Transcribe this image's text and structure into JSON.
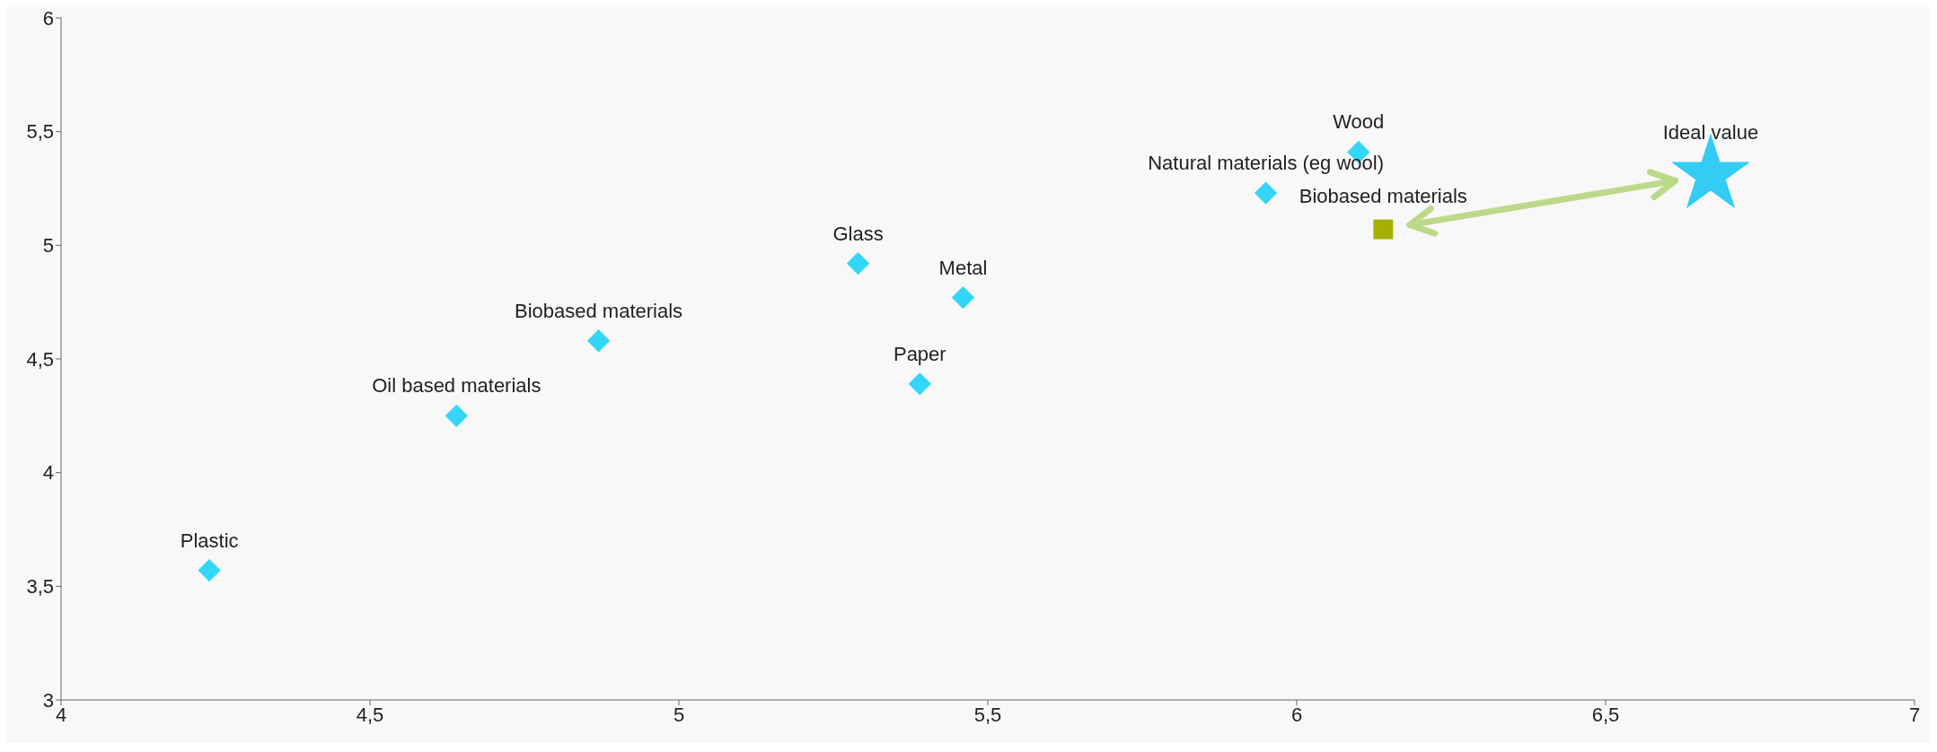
{
  "chart_data": {
    "type": "scatter",
    "xlim": [
      4,
      7
    ],
    "xticks": [
      4,
      {
        "value": 4.5,
        "label": "4,5"
      },
      5,
      {
        "value": 5.5,
        "label": "5,5"
      },
      6,
      {
        "value": 6.5,
        "label": "6,5"
      },
      7
    ],
    "ylim": [
      3,
      6
    ],
    "yticks": [
      3,
      {
        "value": 3.5,
        "label": "3,5"
      },
      4,
      {
        "value": 4.5,
        "label": "4,5"
      },
      5,
      {
        "value": 5.5,
        "label": "5,5"
      },
      6
    ],
    "grid": false,
    "legend": false,
    "series": [
      {
        "color": "#33d6f7",
        "marker": "diamond",
        "x": [
          4.24,
          4.64,
          4.87,
          5.29,
          5.39,
          5.46,
          5.95,
          6.1
        ],
        "values": [
          3.57,
          4.25,
          4.58,
          4.92,
          4.39,
          4.77,
          5.23,
          5.41
        ]
      },
      {
        "color": "#a5b000",
        "marker": "square",
        "x": [
          6.14
        ],
        "values": [
          5.07
        ]
      },
      {
        "color": "#33ccf5",
        "marker": "star",
        "x": [
          6.67
        ],
        "values": [
          5.31
        ]
      }
    ],
    "annotations": [
      {
        "text": "Plastic",
        "x": 4.24,
        "y": 3.57
      },
      {
        "text": "Oil based materials",
        "x": 4.64,
        "y": 4.25
      },
      {
        "text": "Biobased materials",
        "x": 4.87,
        "y": 4.58
      },
      {
        "text": "Glass",
        "x": 5.29,
        "y": 4.92
      },
      {
        "text": "Paper",
        "x": 5.39,
        "y": 4.39
      },
      {
        "text": "Metal",
        "x": 5.46,
        "y": 4.77
      },
      {
        "text": "Natural materials (eg wool)",
        "x": 5.95,
        "y": 5.23
      },
      {
        "text": "Wood",
        "x": 6.1,
        "y": 5.41
      },
      {
        "text": "Biobased materials",
        "x": 6.14,
        "y": 5.07
      },
      {
        "text": "Ideal value",
        "x": 6.67,
        "y": 5.31
      }
    ]
  }
}
